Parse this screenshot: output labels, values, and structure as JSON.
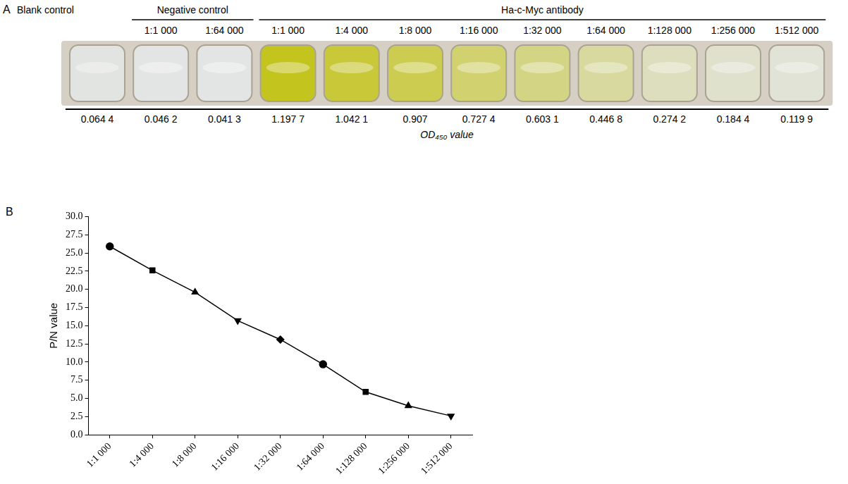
{
  "panel_a": {
    "label": "A",
    "groups": [
      {
        "label": "Blank control",
        "wells": [
          {
            "dilution": null,
            "od": 0.0644,
            "od_label": "0.064 4"
          }
        ]
      },
      {
        "label": "Negative control",
        "wells": [
          {
            "dilution": "1:1 000",
            "od": 0.0462,
            "od_label": "0.046 2"
          },
          {
            "dilution": "1:64 000",
            "od": 0.0413,
            "od_label": "0.041 3"
          }
        ]
      },
      {
        "label": "Ha-c-Myc antibody",
        "wells": [
          {
            "dilution": "1:1 000",
            "od": 1.1977,
            "od_label": "1.197 7"
          },
          {
            "dilution": "1:4 000",
            "od": 1.0421,
            "od_label": "1.042 1"
          },
          {
            "dilution": "1:8 000",
            "od": 0.907,
            "od_label": "0.907"
          },
          {
            "dilution": "1:16 000",
            "od": 0.7274,
            "od_label": "0.727 4"
          },
          {
            "dilution": "1:32 000",
            "od": 0.6031,
            "od_label": "0.603 1"
          },
          {
            "dilution": "1:64 000",
            "od": 0.4468,
            "od_label": "0.446 8"
          },
          {
            "dilution": "1:128 000",
            "od": 0.2742,
            "od_label": "0.274 2"
          },
          {
            "dilution": "1:256 000",
            "od": 0.1844,
            "od_label": "0.184 4"
          },
          {
            "dilution": "1:512 000",
            "od": 0.1199,
            "od_label": "0.119 9"
          }
        ]
      }
    ],
    "value_label": "OD₄₅₀ value"
  },
  "chart_data": {
    "panel_label": "B",
    "type": "line",
    "ylabel": "P/N value",
    "categories": [
      "1:1 000",
      "1:4 000",
      "1:8 000",
      "1:16 000",
      "1:32 000",
      "1:64 000",
      "1:128 000",
      "1:256 000",
      "1:512 000"
    ],
    "values": [
      25.9,
      22.6,
      19.6,
      15.7,
      13.1,
      9.7,
      5.9,
      4.0,
      2.6
    ],
    "color": "#000000",
    "ylim": [
      0,
      30
    ],
    "yticks": [
      {
        "value": 0,
        "label": "0.0"
      },
      2.5,
      {
        "value": 5,
        "label": "5.0"
      },
      7.5,
      {
        "value": 10,
        "label": "10.0"
      },
      12.5,
      {
        "value": 15,
        "label": "15.0"
      },
      17.5,
      {
        "value": 20,
        "label": "20.0"
      },
      22.5,
      {
        "value": 25,
        "label": "25.0"
      },
      27.5,
      {
        "value": 30,
        "label": "30.0"
      }
    ],
    "grid": false
  }
}
